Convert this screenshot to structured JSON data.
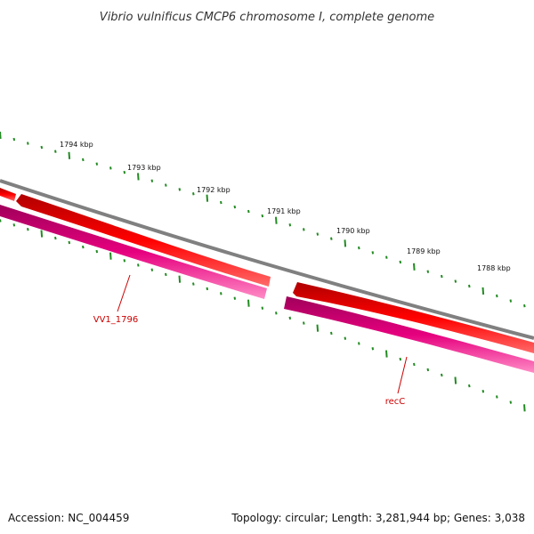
{
  "title": "Vibrio vulnificus CMCP6 chromosome I, complete genome",
  "footer": {
    "accession": "Accession: NC_004459",
    "summary": "Topology: circular; Length: 3,281,944 bp; Genes: 3,038"
  },
  "ruler": {
    "labels": [
      "1794 kbp",
      "1793 kbp",
      "1792 kbp",
      "1791 kbp",
      "1790 kbp",
      "1789 kbp",
      "1788 kbp"
    ],
    "color": "#228b22"
  },
  "backbone": {
    "color": "#808080"
  },
  "genes": [
    {
      "label": "VV1_1796",
      "strand": "reverse",
      "color": "#e6007e"
    },
    {
      "label": "recC",
      "strand": "reverse",
      "color": "#e6007e"
    }
  ],
  "cds": {
    "color": "#ff0000"
  },
  "colors": {
    "label_text": "#cc0000",
    "title_text": "#333333"
  }
}
